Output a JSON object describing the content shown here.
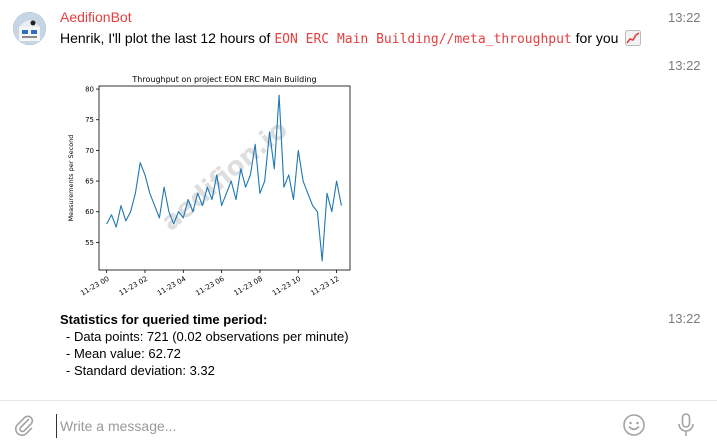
{
  "message1": {
    "sender": "AedifionBot",
    "time": "13:22",
    "text_before": "Henrik, I'll plot the last 12 hours of ",
    "code": "EON ERC Main Building//meta_throughput",
    "text_after": " for you"
  },
  "message2": {
    "time": "13:22"
  },
  "message3": {
    "time": "13:22",
    "stats_title": "Statistics for queried time period:",
    "stats_lines": [
      "- Data points: 721 (0.02 observations per minute)",
      "- Mean value: 62.72",
      "- Standard deviation: 3.32"
    ]
  },
  "composer": {
    "placeholder": "Write a message..."
  },
  "chart_data": {
    "type": "line",
    "title": "Throughput on project EON ERC Main Building",
    "ylabel": "Measurements per Second",
    "xlabel": "",
    "watermark": "aedifion.io",
    "x_ticks": [
      "11-23 00",
      "11-23 02",
      "11-23 04",
      "11-23 06",
      "11-23 08",
      "11-23 10",
      "11-23 12"
    ],
    "y_ticks": [
      55,
      60,
      65,
      70,
      75,
      80
    ],
    "ylim": [
      50.5,
      80.5
    ],
    "xlim": [
      -0.4,
      12.7
    ],
    "color": "#1f77b4",
    "x": [
      0.0,
      0.25,
      0.5,
      0.75,
      1.0,
      1.25,
      1.5,
      1.75,
      2.0,
      2.25,
      2.5,
      2.75,
      3.0,
      3.25,
      3.5,
      3.75,
      4.0,
      4.25,
      4.5,
      4.75,
      5.0,
      5.25,
      5.5,
      5.75,
      6.0,
      6.25,
      6.5,
      6.75,
      7.0,
      7.25,
      7.5,
      7.75,
      8.0,
      8.25,
      8.5,
      8.75,
      9.0,
      9.25,
      9.5,
      9.75,
      10.0,
      10.25,
      10.5,
      10.75,
      11.0,
      11.25,
      11.5,
      11.75,
      12.0,
      12.25
    ],
    "y": [
      58,
      59.5,
      57.5,
      61,
      58.5,
      60,
      63,
      68,
      66,
      63,
      61,
      59,
      64,
      60,
      58,
      60,
      59,
      62,
      60,
      63,
      61,
      64,
      62,
      66,
      61,
      63,
      65,
      62,
      67,
      64,
      66,
      71,
      63,
      65,
      73,
      67,
      79,
      64,
      66,
      62,
      70,
      65,
      63,
      61,
      60,
      52,
      63,
      60,
      65,
      61
    ]
  }
}
